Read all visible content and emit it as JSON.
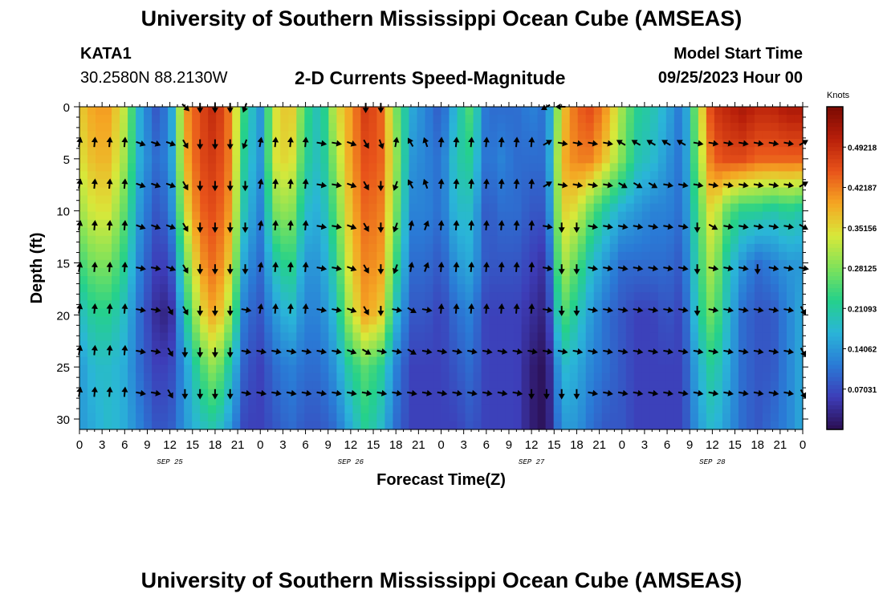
{
  "header": {
    "title": "University of Southern Mississippi Ocean Cube (AMSEAS)",
    "station": "KATA1",
    "coords": "30.2580N  88.2130W",
    "plot_title": "2-D Currents Speed-Magnitude",
    "model_start_label": "Model Start Time",
    "model_start_value": "09/25/2023 Hour 00"
  },
  "footer": {
    "title": "University of Southern Mississippi Ocean Cube (AMSEAS)"
  },
  "colors": {
    "scale": [
      "#2b0e52",
      "#3d3db8",
      "#2a7bd6",
      "#2ab5d8",
      "#25d18a",
      "#7fe25a",
      "#d8e83a",
      "#f5a623",
      "#e8531a",
      "#b81f0a",
      "#7a0a02"
    ],
    "arrow": "#000000",
    "axis": "#000000"
  },
  "chart_data": {
    "type": "heatmap",
    "title": "2-D Currents Speed-Magnitude",
    "xlabel": "Forecast Time(Z)",
    "ylabel": "Depth (ft)",
    "units": "Knots",
    "x_ticks": [
      "0",
      "3",
      "6",
      "9",
      "12",
      "15",
      "18",
      "21",
      "0",
      "3",
      "6",
      "9",
      "12",
      "15",
      "18",
      "21",
      "0",
      "3",
      "6",
      "9",
      "12",
      "15",
      "18",
      "21",
      "0",
      "3",
      "6",
      "9",
      "12",
      "15",
      "18",
      "21",
      "0"
    ],
    "x_range_hours": [
      0,
      96
    ],
    "date_labels": [
      {
        "label": "SEP 25",
        "hour": 12
      },
      {
        "label": "SEP 26",
        "hour": 36
      },
      {
        "label": "SEP 27",
        "hour": 60
      },
      {
        "label": "SEP 28",
        "hour": 84
      }
    ],
    "y_ticks": [
      0,
      5,
      10,
      15,
      20,
      25,
      30
    ],
    "y_range_ft": [
      0,
      31
    ],
    "colorbar": {
      "min": 0.0,
      "max": 0.5625,
      "ticks": [
        "0.49218",
        "0.42187",
        "0.35156",
        "0.28125",
        "0.21093",
        "0.14062",
        "0.07031"
      ],
      "tick_values": [
        0.49218,
        0.42187,
        0.35156,
        0.28125,
        0.21093,
        0.14062,
        0.07031
      ]
    },
    "depths_ft": [
      0,
      5,
      10,
      15,
      20,
      25,
      31
    ],
    "hours": [
      0,
      2,
      4,
      6,
      8,
      10,
      12,
      14,
      16,
      18,
      20,
      22,
      24,
      26,
      28,
      30,
      32,
      34,
      36,
      38,
      40,
      42,
      44,
      46,
      48,
      50,
      52,
      54,
      56,
      58,
      60,
      62,
      64,
      66,
      68,
      70,
      72,
      74,
      76,
      78,
      80,
      82,
      84,
      86,
      88,
      90,
      92,
      94,
      96
    ],
    "speed_knots": [
      [
        0.36,
        0.4,
        0.4,
        0.32,
        0.16,
        0.08,
        0.12,
        0.4,
        0.46,
        0.5,
        0.42,
        0.22,
        0.14,
        0.34,
        0.38,
        0.24,
        0.18,
        0.34,
        0.4,
        0.48,
        0.44,
        0.28,
        0.16,
        0.12,
        0.08,
        0.18,
        0.26,
        0.1,
        0.1,
        0.1,
        0.12,
        0.1,
        0.36,
        0.44,
        0.46,
        0.4,
        0.3,
        0.22,
        0.2,
        0.16,
        0.1,
        0.3,
        0.48,
        0.5,
        0.52,
        0.5,
        0.5,
        0.52,
        0.52
      ],
      [
        0.34,
        0.38,
        0.38,
        0.3,
        0.16,
        0.1,
        0.12,
        0.38,
        0.46,
        0.48,
        0.42,
        0.2,
        0.14,
        0.34,
        0.36,
        0.22,
        0.18,
        0.3,
        0.4,
        0.46,
        0.44,
        0.3,
        0.14,
        0.12,
        0.1,
        0.2,
        0.22,
        0.1,
        0.12,
        0.1,
        0.1,
        0.1,
        0.38,
        0.42,
        0.42,
        0.36,
        0.28,
        0.2,
        0.18,
        0.14,
        0.1,
        0.28,
        0.44,
        0.46,
        0.46,
        0.44,
        0.44,
        0.44,
        0.44
      ],
      [
        0.3,
        0.34,
        0.34,
        0.26,
        0.14,
        0.08,
        0.1,
        0.34,
        0.44,
        0.46,
        0.4,
        0.18,
        0.12,
        0.28,
        0.3,
        0.18,
        0.16,
        0.26,
        0.38,
        0.44,
        0.42,
        0.28,
        0.12,
        0.12,
        0.1,
        0.18,
        0.18,
        0.08,
        0.1,
        0.1,
        0.08,
        0.08,
        0.36,
        0.34,
        0.26,
        0.2,
        0.16,
        0.14,
        0.12,
        0.12,
        0.1,
        0.24,
        0.36,
        0.26,
        0.22,
        0.22,
        0.2,
        0.22,
        0.2
      ],
      [
        0.24,
        0.28,
        0.28,
        0.22,
        0.12,
        0.06,
        0.06,
        0.26,
        0.4,
        0.44,
        0.36,
        0.14,
        0.1,
        0.2,
        0.24,
        0.14,
        0.14,
        0.22,
        0.36,
        0.42,
        0.4,
        0.24,
        0.1,
        0.1,
        0.08,
        0.14,
        0.16,
        0.08,
        0.08,
        0.08,
        0.06,
        0.04,
        0.32,
        0.26,
        0.18,
        0.14,
        0.1,
        0.1,
        0.1,
        0.1,
        0.08,
        0.22,
        0.32,
        0.2,
        0.14,
        0.1,
        0.12,
        0.14,
        0.14
      ],
      [
        0.18,
        0.22,
        0.22,
        0.18,
        0.1,
        0.04,
        0.02,
        0.2,
        0.34,
        0.4,
        0.3,
        0.1,
        0.08,
        0.14,
        0.18,
        0.12,
        0.12,
        0.18,
        0.32,
        0.4,
        0.36,
        0.18,
        0.08,
        0.08,
        0.06,
        0.1,
        0.12,
        0.06,
        0.06,
        0.06,
        0.04,
        0.02,
        0.26,
        0.2,
        0.14,
        0.1,
        0.08,
        0.06,
        0.06,
        0.08,
        0.06,
        0.2,
        0.28,
        0.18,
        0.1,
        0.08,
        0.08,
        0.12,
        0.16
      ],
      [
        0.14,
        0.18,
        0.18,
        0.16,
        0.1,
        0.06,
        0.06,
        0.14,
        0.24,
        0.3,
        0.2,
        0.08,
        0.06,
        0.1,
        0.12,
        0.1,
        0.1,
        0.14,
        0.22,
        0.26,
        0.22,
        0.12,
        0.06,
        0.06,
        0.06,
        0.08,
        0.1,
        0.06,
        0.06,
        0.06,
        0.02,
        0.0,
        0.18,
        0.16,
        0.12,
        0.1,
        0.08,
        0.06,
        0.06,
        0.06,
        0.06,
        0.16,
        0.22,
        0.16,
        0.1,
        0.08,
        0.08,
        0.12,
        0.16
      ],
      [
        0.14,
        0.16,
        0.18,
        0.16,
        0.12,
        0.08,
        0.08,
        0.14,
        0.18,
        0.2,
        0.14,
        0.06,
        0.06,
        0.08,
        0.1,
        0.08,
        0.08,
        0.1,
        0.16,
        0.22,
        0.18,
        0.1,
        0.06,
        0.06,
        0.06,
        0.06,
        0.08,
        0.06,
        0.06,
        0.06,
        0.02,
        0.0,
        0.14,
        0.14,
        0.1,
        0.08,
        0.08,
        0.06,
        0.06,
        0.06,
        0.06,
        0.14,
        0.18,
        0.14,
        0.1,
        0.08,
        0.1,
        0.12,
        0.16
      ]
    ],
    "vector_hours": [
      0,
      2,
      4,
      6,
      8,
      10,
      12,
      14,
      16,
      18,
      20,
      22,
      24,
      26,
      28,
      30,
      32,
      34,
      36,
      38,
      40,
      42,
      44,
      46,
      48,
      50,
      52,
      54,
      56,
      58,
      60,
      62,
      64,
      66,
      68,
      70,
      72,
      74,
      76,
      78,
      80,
      82,
      84,
      86,
      88,
      90,
      92,
      94,
      96
    ],
    "vector_depths_ft": [
      0,
      3.5,
      7.5,
      11.5,
      15.5,
      19.5,
      23.5,
      27.5
    ],
    "vector_dirs_deg": [
      [
        null,
        null,
        null,
        null,
        null,
        null,
        null,
        135,
        180,
        180,
        180,
        200,
        null,
        null,
        null,
        null,
        null,
        null,
        null,
        180,
        180,
        null,
        null,
        null,
        null,
        null,
        null,
        null,
        null,
        null,
        null,
        240,
        270,
        null,
        null,
        null,
        null,
        null,
        null,
        null,
        null,
        null,
        null,
        null,
        null,
        null,
        null,
        null,
        null
      ],
      [
        10,
        5,
        5,
        5,
        110,
        110,
        110,
        150,
        180,
        180,
        180,
        200,
        10,
        5,
        5,
        5,
        100,
        100,
        110,
        150,
        160,
        10,
        330,
        340,
        5,
        5,
        5,
        5,
        5,
        5,
        5,
        60,
        100,
        100,
        100,
        100,
        300,
        300,
        300,
        300,
        300,
        100,
        100,
        100,
        100,
        100,
        100,
        100,
        60
      ],
      [
        10,
        5,
        5,
        5,
        110,
        110,
        110,
        150,
        180,
        180,
        180,
        180,
        10,
        5,
        5,
        5,
        100,
        100,
        110,
        150,
        180,
        200,
        330,
        340,
        5,
        5,
        5,
        5,
        5,
        5,
        5,
        60,
        100,
        100,
        100,
        100,
        120,
        120,
        120,
        100,
        100,
        100,
        100,
        100,
        100,
        100,
        100,
        100,
        60
      ],
      [
        10,
        5,
        5,
        5,
        110,
        110,
        110,
        150,
        180,
        180,
        180,
        180,
        10,
        5,
        5,
        5,
        100,
        100,
        110,
        150,
        180,
        200,
        10,
        20,
        5,
        5,
        5,
        5,
        5,
        5,
        5,
        100,
        180,
        180,
        100,
        100,
        100,
        100,
        100,
        100,
        100,
        180,
        120,
        100,
        100,
        100,
        100,
        100,
        120
      ],
      [
        10,
        5,
        5,
        5,
        100,
        100,
        110,
        150,
        180,
        180,
        180,
        180,
        10,
        5,
        5,
        5,
        100,
        100,
        110,
        150,
        180,
        200,
        10,
        20,
        5,
        5,
        5,
        5,
        5,
        5,
        5,
        100,
        180,
        180,
        100,
        100,
        100,
        100,
        100,
        100,
        100,
        180,
        100,
        100,
        100,
        180,
        100,
        100,
        100
      ],
      [
        10,
        5,
        5,
        5,
        100,
        100,
        150,
        150,
        180,
        180,
        180,
        100,
        10,
        5,
        5,
        5,
        100,
        100,
        110,
        150,
        180,
        100,
        120,
        100,
        5,
        5,
        5,
        5,
        5,
        5,
        5,
        100,
        180,
        180,
        100,
        100,
        100,
        100,
        100,
        100,
        100,
        180,
        100,
        100,
        100,
        100,
        100,
        100,
        150
      ],
      [
        10,
        5,
        5,
        5,
        100,
        100,
        150,
        180,
        180,
        180,
        180,
        100,
        100,
        100,
        100,
        100,
        100,
        100,
        110,
        120,
        100,
        100,
        120,
        100,
        100,
        100,
        100,
        100,
        100,
        100,
        100,
        100,
        100,
        100,
        100,
        100,
        100,
        100,
        100,
        100,
        100,
        100,
        100,
        100,
        100,
        100,
        100,
        100,
        150
      ],
      [
        10,
        5,
        5,
        5,
        100,
        100,
        150,
        180,
        180,
        180,
        180,
        100,
        100,
        100,
        100,
        100,
        100,
        100,
        100,
        100,
        100,
        100,
        100,
        100,
        100,
        100,
        100,
        100,
        100,
        100,
        180,
        180,
        180,
        180,
        100,
        100,
        100,
        100,
        100,
        100,
        100,
        100,
        100,
        100,
        100,
        100,
        100,
        100,
        150
      ]
    ]
  }
}
